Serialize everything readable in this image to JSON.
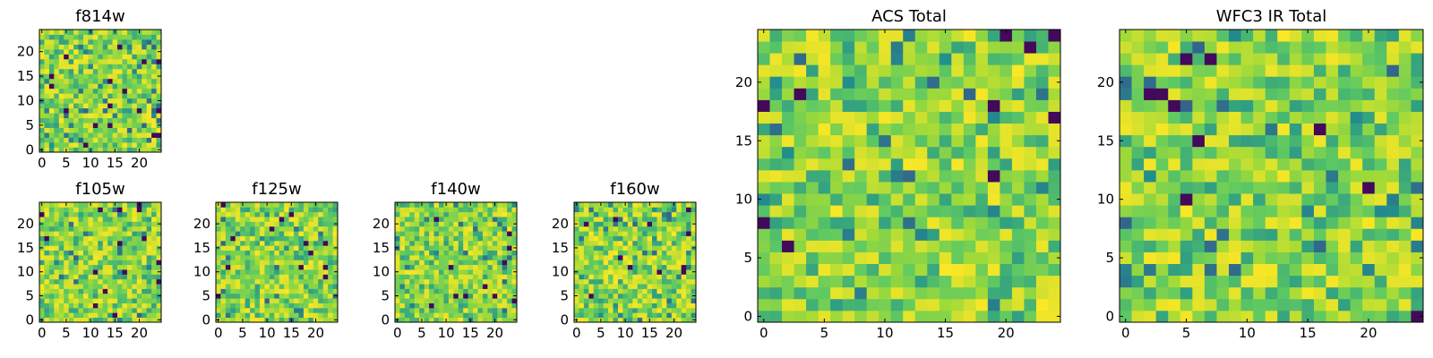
{
  "chart_data": [
    {
      "type": "heatmap",
      "title": "f814w",
      "colormap": "viridis",
      "grid_shape": [
        25,
        25
      ],
      "xlim": [
        0,
        24
      ],
      "ylim": [
        0,
        24
      ],
      "xticks": [
        0,
        5,
        10,
        15,
        20
      ],
      "yticks": [
        0,
        5,
        10,
        15,
        20
      ],
      "seed": 814
    },
    {
      "type": "heatmap",
      "title": "f105w",
      "colormap": "viridis",
      "grid_shape": [
        25,
        25
      ],
      "xlim": [
        0,
        24
      ],
      "ylim": [
        0,
        24
      ],
      "xticks": [
        0,
        5,
        10,
        15,
        20
      ],
      "yticks": [
        0,
        5,
        10,
        15,
        20
      ],
      "seed": 105
    },
    {
      "type": "heatmap",
      "title": "f125w",
      "colormap": "viridis",
      "grid_shape": [
        25,
        25
      ],
      "xlim": [
        0,
        24
      ],
      "ylim": [
        0,
        24
      ],
      "xticks": [
        0,
        5,
        10,
        15,
        20
      ],
      "yticks": [
        0,
        5,
        10,
        15,
        20
      ],
      "seed": 125
    },
    {
      "type": "heatmap",
      "title": "f140w",
      "colormap": "viridis",
      "grid_shape": [
        25,
        25
      ],
      "xlim": [
        0,
        24
      ],
      "ylim": [
        0,
        24
      ],
      "xticks": [
        0,
        5,
        10,
        15,
        20
      ],
      "yticks": [
        0,
        5,
        10,
        15,
        20
      ],
      "seed": 140
    },
    {
      "type": "heatmap",
      "title": "f160w",
      "colormap": "viridis",
      "grid_shape": [
        25,
        25
      ],
      "xlim": [
        0,
        24
      ],
      "ylim": [
        0,
        24
      ],
      "xticks": [
        0,
        5,
        10,
        15,
        20
      ],
      "yticks": [
        0,
        5,
        10,
        15,
        20
      ],
      "seed": 160
    },
    {
      "type": "heatmap",
      "title": "ACS Total",
      "colormap": "viridis",
      "grid_shape": [
        25,
        25
      ],
      "xlim": [
        0,
        24
      ],
      "ylim": [
        0,
        24
      ],
      "xticks": [
        0,
        5,
        10,
        15,
        20
      ],
      "yticks": [
        0,
        5,
        10,
        15,
        20
      ],
      "seed": 1001
    },
    {
      "type": "heatmap",
      "title": "WFC3 IR Total",
      "colormap": "viridis",
      "grid_shape": [
        25,
        25
      ],
      "xlim": [
        0,
        24
      ],
      "ylim": [
        0,
        24
      ],
      "xticks": [
        0,
        5,
        10,
        15,
        20
      ],
      "yticks": [
        0,
        5,
        10,
        15,
        20
      ],
      "seed": 2002
    }
  ],
  "colors": {
    "viridis_stops": [
      "#440154",
      "#3b528b",
      "#21918c",
      "#5ec962",
      "#a0da39",
      "#fde725"
    ],
    "axes_frame": "#000000",
    "background": "#ffffff"
  }
}
